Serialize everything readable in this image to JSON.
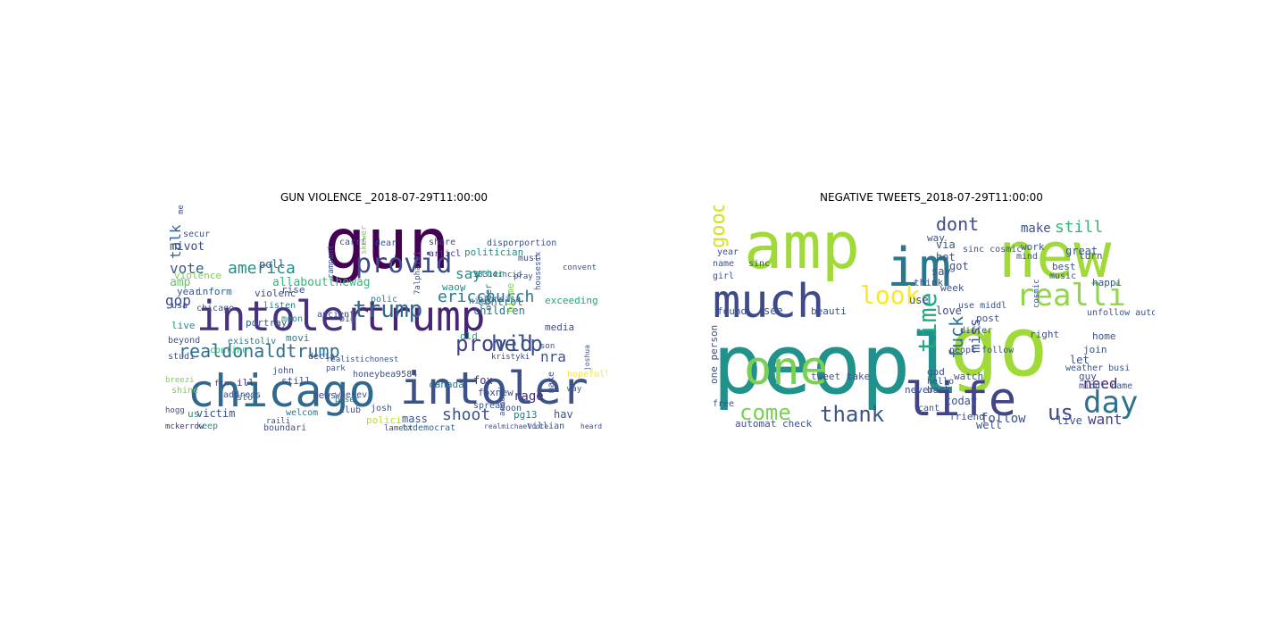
{
  "figure": {
    "panels": [
      {
        "title": "GUN VIOLENCE _2018-07-29T11:00:00",
        "words": [
          {
            "text": "gun",
            "color": "#440154"
          },
          {
            "text": "intoler",
            "color": "#46327e"
          },
          {
            "text": "trump",
            "color": "#482475"
          },
          {
            "text": "chicago",
            "color": "#31688e"
          },
          {
            "text": "intoler",
            "color": "#3b528b"
          },
          {
            "text": "trump",
            "color": "#31688e"
          },
          {
            "text": "provid",
            "color": "#3e4a89"
          },
          {
            "text": "provid",
            "color": "#404387"
          },
          {
            "text": "help",
            "color": "#3b528b"
          },
          {
            "text": "realdonaldtrump",
            "color": "#2c728e"
          },
          {
            "text": "america",
            "color": "#21918c"
          },
          {
            "text": "vote",
            "color": "#355f8d"
          },
          {
            "text": "ericchurch",
            "color": "#2a788e"
          },
          {
            "text": "shoot",
            "color": "#3b528b"
          },
          {
            "text": "say",
            "color": "#23898e"
          },
          {
            "text": "talk",
            "color": "#355f8d"
          },
          {
            "text": "gop",
            "color": "#3e4a89"
          },
          {
            "text": "nra",
            "color": "#3b528b"
          },
          {
            "text": "amp",
            "color": "#5ec962"
          },
          {
            "text": "allaboutthewag",
            "color": "#35b779"
          },
          {
            "text": "waow",
            "color": "#21918c"
          },
          {
            "text": "poll",
            "color": "#3b528b"
          },
          {
            "text": "mivot",
            "color": "#3e4a89"
          },
          {
            "text": "violence",
            "color": "#7ad151"
          },
          {
            "text": "children",
            "color": "#2c728e"
          },
          {
            "text": "rage",
            "color": "#472d7b"
          },
          {
            "text": "mass",
            "color": "#3b528b"
          },
          {
            "text": "victim",
            "color": "#3b528b"
          },
          {
            "text": "fox",
            "color": "#46327e"
          },
          {
            "text": "foxnew",
            "color": "#3e4a89"
          },
          {
            "text": "hopefully",
            "color": "#fde725"
          },
          {
            "text": "control",
            "color": "#2a788e"
          },
          {
            "text": "media",
            "color": "#3b528b"
          },
          {
            "text": "exceeding",
            "color": "#20a486"
          },
          {
            "text": "old",
            "color": "#22a884"
          },
          {
            "text": "live",
            "color": "#21918c"
          },
          {
            "text": "beyond",
            "color": "#3b528b"
          },
          {
            "text": "studi",
            "color": "#3b528b"
          },
          {
            "text": "portray",
            "color": "#355f8d"
          },
          {
            "text": "violenc",
            "color": "#3e4a89"
          },
          {
            "text": "polic",
            "color": "#2a788e"
          },
          {
            "text": "blame",
            "color": "#7ad151"
          },
          {
            "text": "nice",
            "color": "#2a788e"
          },
          {
            "text": "bronsisa",
            "color": "#31688e"
          },
          {
            "text": "politician",
            "color": "#21918c"
          },
          {
            "text": "disporportion",
            "color": "#3b528b"
          },
          {
            "text": "articl",
            "color": "#46327e"
          },
          {
            "text": "share",
            "color": "#3e4a89"
          },
          {
            "text": "dear",
            "color": "#3b528b"
          },
          {
            "text": "carri",
            "color": "#3b528b"
          },
          {
            "text": "rather",
            "color": "#22a884"
          },
          {
            "text": "must",
            "color": "#3b528b"
          },
          {
            "text": "older",
            "color": "#2c728e"
          },
          {
            "text": "year",
            "color": "#3b528b"
          },
          {
            "text": "inform",
            "color": "#355f8d"
          },
          {
            "text": "rise",
            "color": "#3b528b"
          },
          {
            "text": "listen",
            "color": "#2a788e"
          },
          {
            "text": "moon",
            "color": "#21918c"
          },
          {
            "text": "usa",
            "color": "#3b528b"
          },
          {
            "text": "chicago",
            "color": "#3b528b"
          },
          {
            "text": "secur",
            "color": "#3b528b"
          },
          {
            "text": "existoliv",
            "color": "#2a788e"
          },
          {
            "text": "continu",
            "color": "#35b779"
          },
          {
            "text": "movi",
            "color": "#2a788e"
          },
          {
            "text": "decis",
            "color": "#3b528b"
          },
          {
            "text": "john",
            "color": "#3b528b"
          },
          {
            "text": "still",
            "color": "#3b528b"
          },
          {
            "text": "ill",
            "color": "#46327e"
          },
          {
            "text": "fin",
            "color": "#3e4a89"
          },
          {
            "text": "stop",
            "color": "#2a788e"
          },
          {
            "text": "news",
            "color": "#3e4a89"
          },
          {
            "text": "canada",
            "color": "#2a788e"
          },
          {
            "text": "spread",
            "color": "#3b528b"
          },
          {
            "text": "club",
            "color": "#3b528b"
          },
          {
            "text": "wherev",
            "color": "#3b528b"
          },
          {
            "text": "welcom",
            "color": "#2c728e"
          },
          {
            "text": "address",
            "color": "#3b528b"
          },
          {
            "text": "shine",
            "color": "#7ad151"
          },
          {
            "text": "us",
            "color": "#21918c"
          },
          {
            "text": "keep",
            "color": "#21918c"
          },
          {
            "text": "mckerrow",
            "color": "#46327e"
          },
          {
            "text": "boundari",
            "color": "#3b528b"
          },
          {
            "text": "polici",
            "color": "#bddf26"
          },
          {
            "text": "josh",
            "color": "#3b528b"
          },
          {
            "text": "lament",
            "color": "#3b528b"
          },
          {
            "text": "txdemocrat",
            "color": "#31688e"
          },
          {
            "text": "soon",
            "color": "#3b528b"
          },
          {
            "text": "villian",
            "color": "#3b528b"
          },
          {
            "text": "pg13",
            "color": "#2a788e"
          },
          {
            "text": "hav",
            "color": "#3b528b"
          },
          {
            "text": "heard",
            "color": "#3e4a89"
          },
          {
            "text": "make",
            "color": "#3b528b"
          },
          {
            "text": "around",
            "color": "#3b528b"
          },
          {
            "text": "kristyki",
            "color": "#3e4a89"
          },
          {
            "text": "park",
            "color": "#3b528b"
          },
          {
            "text": "realistichonest",
            "color": "#3b528b"
          },
          {
            "text": "realmichaelcote",
            "color": "#3b528b"
          },
          {
            "text": "honeybea9584",
            "color": "#3b528b"
          },
          {
            "text": "breezi",
            "color": "#7ad151"
          },
          {
            "text": "hogg",
            "color": "#3b528b"
          },
          {
            "text": "raili",
            "color": "#3b528b"
          },
          {
            "text": "skewer",
            "color": "#7ad151"
          },
          {
            "text": "rampant",
            "color": "#3b528b"
          },
          {
            "text": "mental",
            "color": "#3b528b"
          },
          {
            "text": "7alpha101",
            "color": "#3b528b"
          },
          {
            "text": "housesix",
            "color": "#3b528b"
          },
          {
            "text": "joshua",
            "color": "#3b528b"
          },
          {
            "text": "33314incid",
            "color": "#3b528b"
          },
          {
            "text": "convent",
            "color": "#3b528b"
          },
          {
            "text": "pray",
            "color": "#3b528b"
          },
          {
            "text": "ancient",
            "color": "#3b528b"
          },
          {
            "text": "poser",
            "color": "#2a788e"
          },
          {
            "text": "son",
            "color": "#3b528b"
          },
          {
            "text": "way",
            "color": "#3b528b"
          },
          {
            "text": "big",
            "color": "#3b528b"
          },
          {
            "text": "er",
            "color": "#3b528b"
          }
        ]
      },
      {
        "title": "NEGATIVE TWEETS_2018-07-29T11:00:00",
        "words": [
          {
            "text": "peopl",
            "color": "#21918c"
          },
          {
            "text": "go",
            "color": "#a0da39"
          },
          {
            "text": "amp",
            "color": "#a0da39"
          },
          {
            "text": "im",
            "color": "#2a788e"
          },
          {
            "text": "new",
            "color": "#a0da39"
          },
          {
            "text": "much",
            "color": "#3e4a89"
          },
          {
            "text": "one",
            "color": "#7ad151"
          },
          {
            "text": "life",
            "color": "#414487"
          },
          {
            "text": "realli",
            "color": "#8fd744"
          },
          {
            "text": "day",
            "color": "#2c728e"
          },
          {
            "text": "look",
            "color": "#fde725"
          },
          {
            "text": "time",
            "color": "#22a884"
          },
          {
            "text": "good",
            "color": "#d2e21b"
          },
          {
            "text": "thank",
            "color": "#3b528b"
          },
          {
            "text": "come",
            "color": "#7ad151"
          },
          {
            "text": "us",
            "color": "#3e4a89"
          },
          {
            "text": "fuck",
            "color": "#2c728e"
          },
          {
            "text": "miss",
            "color": "#3b528b"
          },
          {
            "text": "dont",
            "color": "#3e4a89"
          },
          {
            "text": "still",
            "color": "#35b779"
          },
          {
            "text": "make",
            "color": "#3b528b"
          },
          {
            "text": "want",
            "color": "#414487"
          },
          {
            "text": "need",
            "color": "#482475"
          },
          {
            "text": "live",
            "color": "#3b528b"
          },
          {
            "text": "follow",
            "color": "#3b528b"
          },
          {
            "text": "love",
            "color": "#3e4a89"
          },
          {
            "text": "today",
            "color": "#3b528b"
          },
          {
            "text": "use",
            "color": "#3b528b"
          },
          {
            "text": "see",
            "color": "#3b528b"
          },
          {
            "text": "found",
            "color": "#3b528b"
          },
          {
            "text": "never",
            "color": "#3b528b"
          },
          {
            "text": "one person",
            "color": "#3b528b"
          },
          {
            "text": "automat check",
            "color": "#3b528b"
          },
          {
            "text": "tweet take",
            "color": "#3b528b"
          },
          {
            "text": "beauti",
            "color": "#3b528b"
          },
          {
            "text": "via",
            "color": "#3b528b"
          },
          {
            "text": "hot",
            "color": "#3b528b"
          },
          {
            "text": "got",
            "color": "#3b528b"
          },
          {
            "text": "say",
            "color": "#3b528b"
          },
          {
            "text": "think",
            "color": "#3b528b"
          },
          {
            "text": "week",
            "color": "#3b528b"
          },
          {
            "text": "great",
            "color": "#3b528b"
          },
          {
            "text": "work",
            "color": "#3b528b"
          },
          {
            "text": "turn",
            "color": "#3b528b"
          },
          {
            "text": "let",
            "color": "#3b528b"
          },
          {
            "text": "guy",
            "color": "#3b528b"
          },
          {
            "text": "right",
            "color": "#3b528b"
          },
          {
            "text": "join",
            "color": "#3b528b"
          },
          {
            "text": "post",
            "color": "#3b528b"
          },
          {
            "text": "back",
            "color": "#3b528b"
          },
          {
            "text": "cant",
            "color": "#3b528b"
          },
          {
            "text": "well",
            "color": "#3b528b"
          },
          {
            "text": "friend",
            "color": "#3b528b"
          },
          {
            "text": "watch",
            "color": "#3b528b"
          },
          {
            "text": "happi",
            "color": "#3b528b"
          },
          {
            "text": "best",
            "color": "#3b528b"
          },
          {
            "text": "free",
            "color": "#3b528b"
          },
          {
            "text": "god",
            "color": "#3b528b"
          },
          {
            "text": "girl",
            "color": "#3b528b"
          },
          {
            "text": "name",
            "color": "#3b528b"
          },
          {
            "text": "sinc",
            "color": "#3b528b"
          },
          {
            "text": "year",
            "color": "#3b528b"
          },
          {
            "text": "way",
            "color": "#3b528b"
          },
          {
            "text": "mind",
            "color": "#3b528b"
          },
          {
            "text": "home",
            "color": "#3b528b"
          },
          {
            "text": "middl name",
            "color": "#3b528b"
          },
          {
            "text": "music",
            "color": "#3b528b"
          },
          {
            "text": "peopl follow",
            "color": "#3b528b"
          },
          {
            "text": "use middl",
            "color": "#3b528b"
          },
          {
            "text": "hello",
            "color": "#3b528b"
          },
          {
            "text": "differ",
            "color": "#3b528b"
          },
          {
            "text": "weather busi",
            "color": "#3b528b"
          },
          {
            "text": "unfollow automat",
            "color": "#3b528b"
          },
          {
            "text": "sinc cosmic",
            "color": "#3b528b"
          },
          {
            "text": "cosmic",
            "color": "#3b528b"
          }
        ]
      }
    ]
  }
}
